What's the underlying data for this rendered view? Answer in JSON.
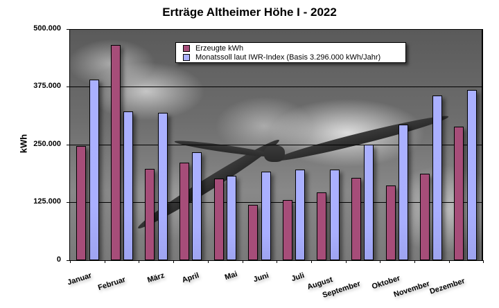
{
  "chart_data": {
    "type": "bar",
    "title": "Erträge Altheimer Höhe I - 2022",
    "xlabel": "",
    "ylabel": "kWh",
    "ylim": [
      0,
      500000
    ],
    "yticks": [
      "0",
      "125.000",
      "250.000",
      "375.000",
      "500.000"
    ],
    "grid": true,
    "legend_position": "top-center inside plot",
    "categories": [
      "Januar",
      "Februar",
      "März",
      "April",
      "Mai",
      "Juni",
      "Juli",
      "August",
      "September",
      "Oktober",
      "November",
      "Dezember"
    ],
    "series": [
      {
        "name": "Erzeugte kWh",
        "color": "#a64d79",
        "values": [
          247000,
          465000,
          197000,
          211000,
          177000,
          120000,
          130000,
          147000,
          178000,
          162000,
          187000,
          289000
        ]
      },
      {
        "name": "Monatssoll laut IWR-Index (Basis 3.296.000 kWh/Jahr)",
        "color": "#aab0ff",
        "values": [
          390000,
          322000,
          319000,
          233000,
          183000,
          192000,
          196000,
          196000,
          250000,
          293000,
          356000,
          368000
        ]
      }
    ]
  },
  "title": "Erträge Altheimer Höhe I - 2022",
  "yaxis": {
    "label": "kWh",
    "ticks": [
      "500.000",
      "375.000",
      "250.000",
      "125.000",
      "0"
    ]
  },
  "legend": {
    "items": [
      {
        "label": "Erzeugte kWh",
        "color": "#a64d79"
      },
      {
        "label": "Monatssoll laut IWR-Index (Basis 3.296.000 kWh/Jahr)",
        "color": "#aab0ff"
      }
    ]
  },
  "months": [
    "Januar",
    "Februar",
    "März",
    "April",
    "Mai",
    "Juni",
    "Juli",
    "August",
    "September",
    "Oktober",
    "November",
    "Dezember"
  ]
}
